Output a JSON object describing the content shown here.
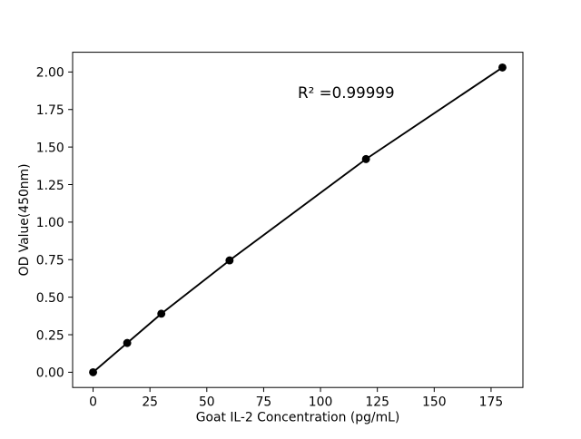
{
  "figure": {
    "background_color": "#ffffff",
    "ink_color": "#000000"
  },
  "chart_data": {
    "type": "line",
    "title": "",
    "xlabel": "Goat IL-2 Concentration (pg/mL)",
    "ylabel": "OD Value(450nm)",
    "annotation": {
      "text": "R² =0.99999",
      "x": 90,
      "y": 1.828
    },
    "series": [
      {
        "name": "standard-curve",
        "x": [
          0,
          15,
          30,
          60,
          120,
          180
        ],
        "y": [
          0.0,
          0.195,
          0.39,
          0.745,
          1.42,
          2.03
        ],
        "color": "#000000",
        "marker": "circle",
        "line_style": "solid"
      }
    ],
    "xlim": [
      -9,
      189
    ],
    "ylim": [
      -0.1015,
      2.1315
    ],
    "xticks": [
      0,
      25,
      50,
      75,
      100,
      125,
      150,
      175
    ],
    "xtick_labels": [
      "0",
      "25",
      "50",
      "75",
      "100",
      "125",
      "150",
      "175"
    ],
    "yticks": [
      0.0,
      0.25,
      0.5,
      0.75,
      1.0,
      1.25,
      1.5,
      1.75,
      2.0
    ],
    "ytick_labels": [
      "0.00",
      "0.25",
      "0.50",
      "0.75",
      "1.00",
      "1.25",
      "1.50",
      "1.75",
      "2.00"
    ],
    "grid": false,
    "legend": null
  }
}
